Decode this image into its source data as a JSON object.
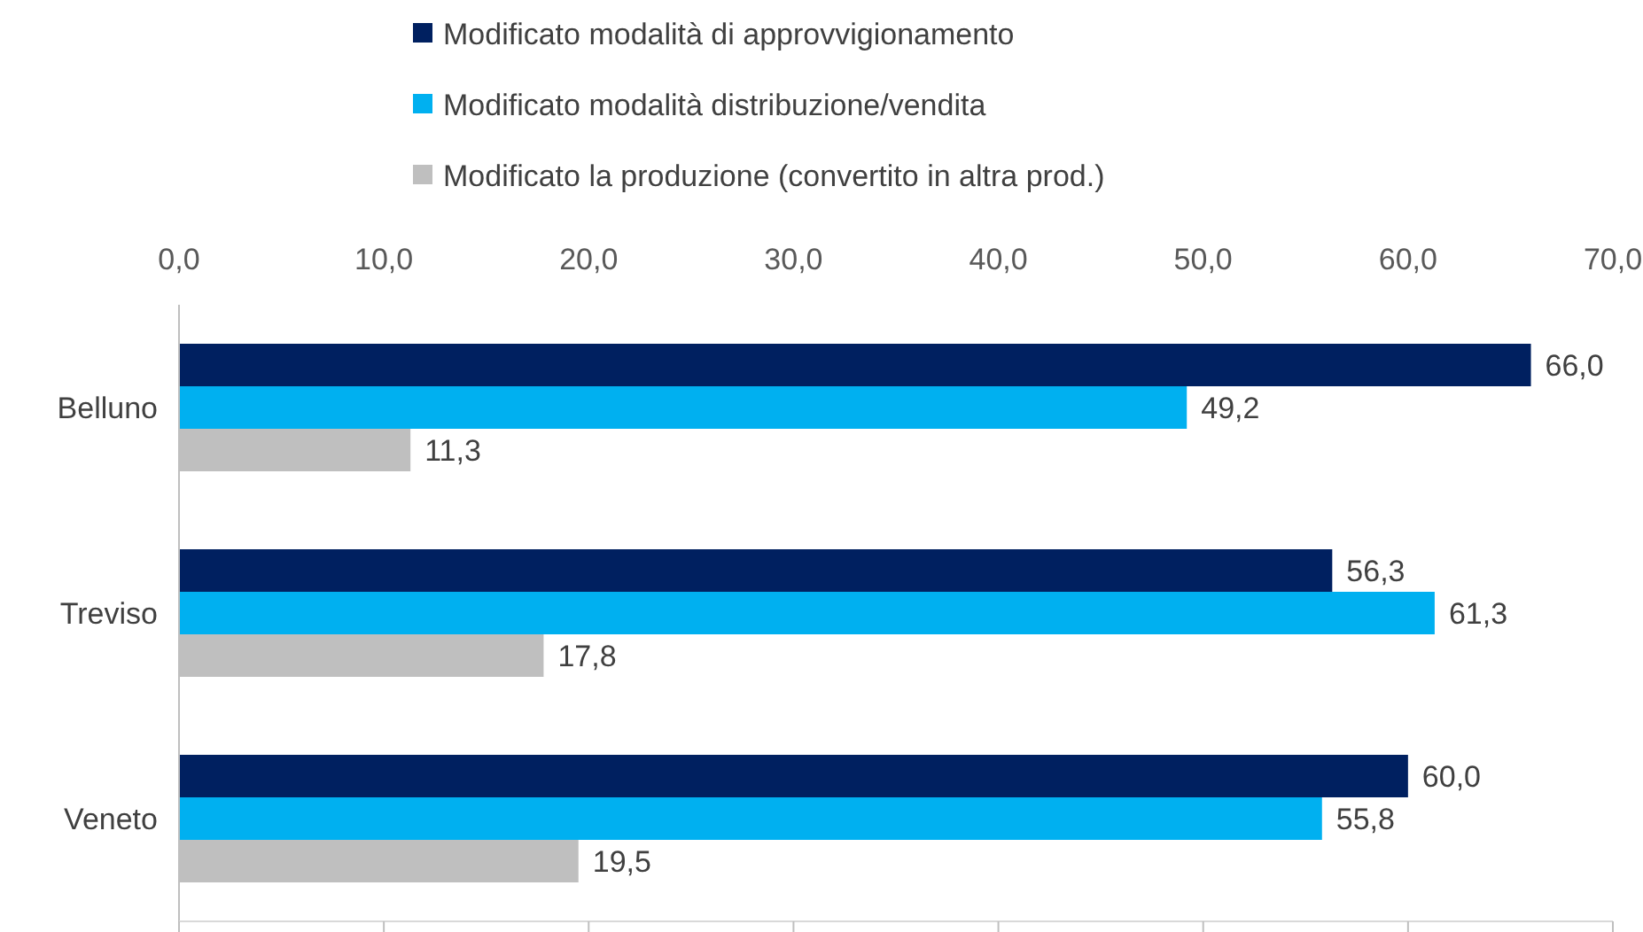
{
  "chart_data": {
    "type": "bar",
    "orientation": "horizontal",
    "categories": [
      "Belluno",
      "Treviso",
      "Veneto"
    ],
    "series": [
      {
        "name": "Modificato modalità di approvvigionamento",
        "color": "#002060",
        "values": [
          66.0,
          56.3,
          60.0
        ],
        "value_labels": [
          "66,0",
          "56,3",
          "60,0"
        ]
      },
      {
        "name": "Modificato modalità distribuzione/vendita",
        "color": "#00b0f0",
        "values": [
          49.2,
          61.3,
          55.8
        ],
        "value_labels": [
          "49,2",
          "61,3",
          "55,8"
        ]
      },
      {
        "name": "Modificato la produzione (convertito in altra prod.)",
        "color": "#bfbfbf",
        "values": [
          11.3,
          17.8,
          19.5
        ],
        "value_labels": [
          "11,3",
          "17,8",
          "19,5"
        ]
      }
    ],
    "xlim": [
      0,
      70
    ],
    "xticks": [
      {
        "value": 0,
        "label": "0,0"
      },
      {
        "value": 10,
        "label": "10,0"
      },
      {
        "value": 20,
        "label": "20,0"
      },
      {
        "value": 30,
        "label": "30,0"
      },
      {
        "value": 40,
        "label": "40,0"
      },
      {
        "value": 50,
        "label": "50,0"
      },
      {
        "value": 60,
        "label": "60,0"
      },
      {
        "value": 70,
        "label": "70,0"
      }
    ],
    "grid": false,
    "legend": "top"
  }
}
